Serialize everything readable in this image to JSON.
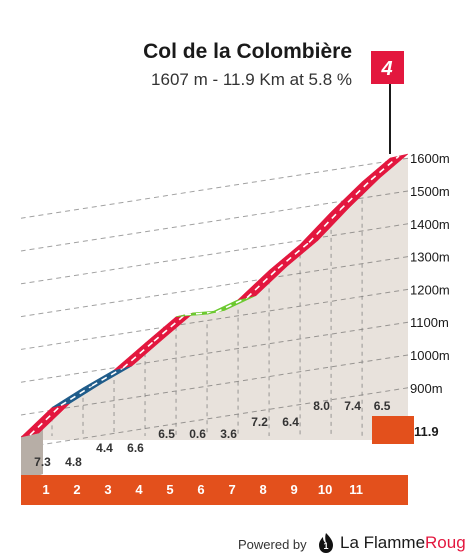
{
  "header": {
    "title": "Col de la Colombière",
    "subtitle": "1607 m - 11.9 Km at 5.8 %"
  },
  "category_badge": {
    "label": "4",
    "color": "#e3173e"
  },
  "footer": {
    "powered_by": "Powered by",
    "brand_plain": "La Flamme",
    "brand_accent": "Rouge",
    "accent_color": "#e3173e"
  },
  "colors": {
    "red": "#e3173e",
    "blue": "#1f5c8a",
    "green": "#6cc92f",
    "km_band": "#e3501c",
    "fill": "#e8e2dc",
    "base": "#b7aea6"
  },
  "chart_data": {
    "type": "area",
    "title": "Col de la Colombière",
    "subtitle": "1607 m - 11.9 Km at 5.8 %",
    "x_unit": "km",
    "y_unit": "m",
    "ylim": [
      860,
      1620
    ],
    "y_ticks": [
      "1600m",
      "1500m",
      "1400m",
      "1300m",
      "1200m",
      "1100m",
      "1000m",
      "900m"
    ],
    "y_tick_values": [
      1600,
      1500,
      1400,
      1300,
      1200,
      1100,
      1000,
      900
    ],
    "km_labels": [
      "1",
      "2",
      "3",
      "4",
      "5",
      "6",
      "7",
      "8",
      "9",
      "10",
      "11"
    ],
    "end_km_label": "11.9",
    "gradients": [
      7.3,
      4.8,
      4.4,
      6.6,
      6.5,
      0.6,
      3.6,
      7.2,
      6.4,
      8.0,
      7.4,
      6.5
    ],
    "gradient_labels": [
      "7.3",
      "4.8",
      "4.4",
      "6.6",
      "6.5",
      "0.6",
      "3.6",
      "7.2",
      "6.4",
      "8.0",
      "7.4",
      "6.5"
    ],
    "gradient_colors": [
      "red",
      "blue",
      "blue",
      "red",
      "red",
      "green",
      "green",
      "red",
      "red",
      "red",
      "red",
      "red"
    ],
    "summit_altitude": 1607
  }
}
